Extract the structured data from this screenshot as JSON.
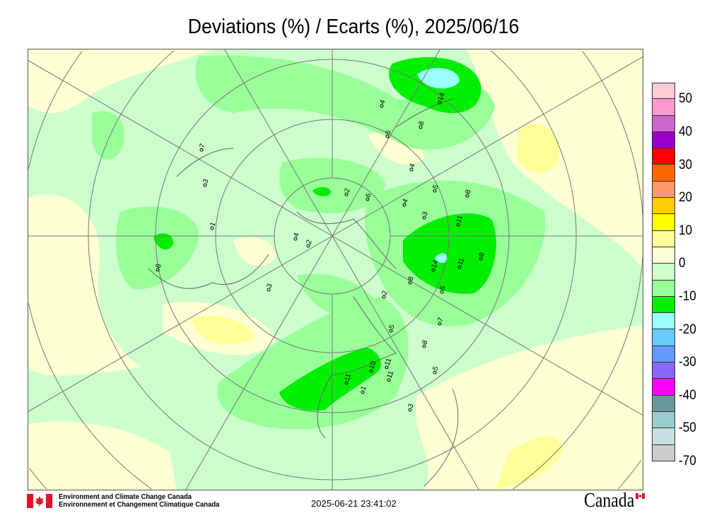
{
  "title": "Deviations (%) / Ecarts (%), 2025/06/16",
  "legend": {
    "colors": [
      "#ffccd1",
      "#ff99cc",
      "#cc66cc",
      "#9900cc",
      "#ff0000",
      "#ff6600",
      "#ff9966",
      "#ffcc00",
      "#ffff00",
      "#ffff99",
      "#ffffd4",
      "#ccffcc",
      "#99ff99",
      "#00ee00",
      "#99ffff",
      "#66ccff",
      "#6699ff",
      "#8866ff",
      "#ff00ff",
      "#669999",
      "#99cccc",
      "#c6e0e0",
      "#cccccc"
    ],
    "labels": [
      "50",
      "40",
      "30",
      "20",
      "10",
      "0",
      "-10",
      "-20",
      "-30",
      "-40",
      "-50",
      "-70"
    ]
  },
  "map": {
    "station_values": [
      "14",
      "8",
      "4",
      "6",
      "4",
      "5",
      "8",
      "4",
      "3",
      "11",
      "9",
      "11",
      "14",
      "8",
      "5",
      "2",
      "7",
      "8",
      "5",
      "5",
      "11",
      "11",
      "10",
      "11",
      "1",
      "3",
      "3",
      "1",
      "8",
      "3",
      "7",
      "6",
      "2",
      "2",
      "4"
    ]
  },
  "footer": {
    "org_en": "Environment and Climate Change Canada",
    "org_fr": "Environnement et Changement Climatique Canada",
    "timestamp": "2025-06-21 23:41:02",
    "wordmark": "Canada"
  }
}
